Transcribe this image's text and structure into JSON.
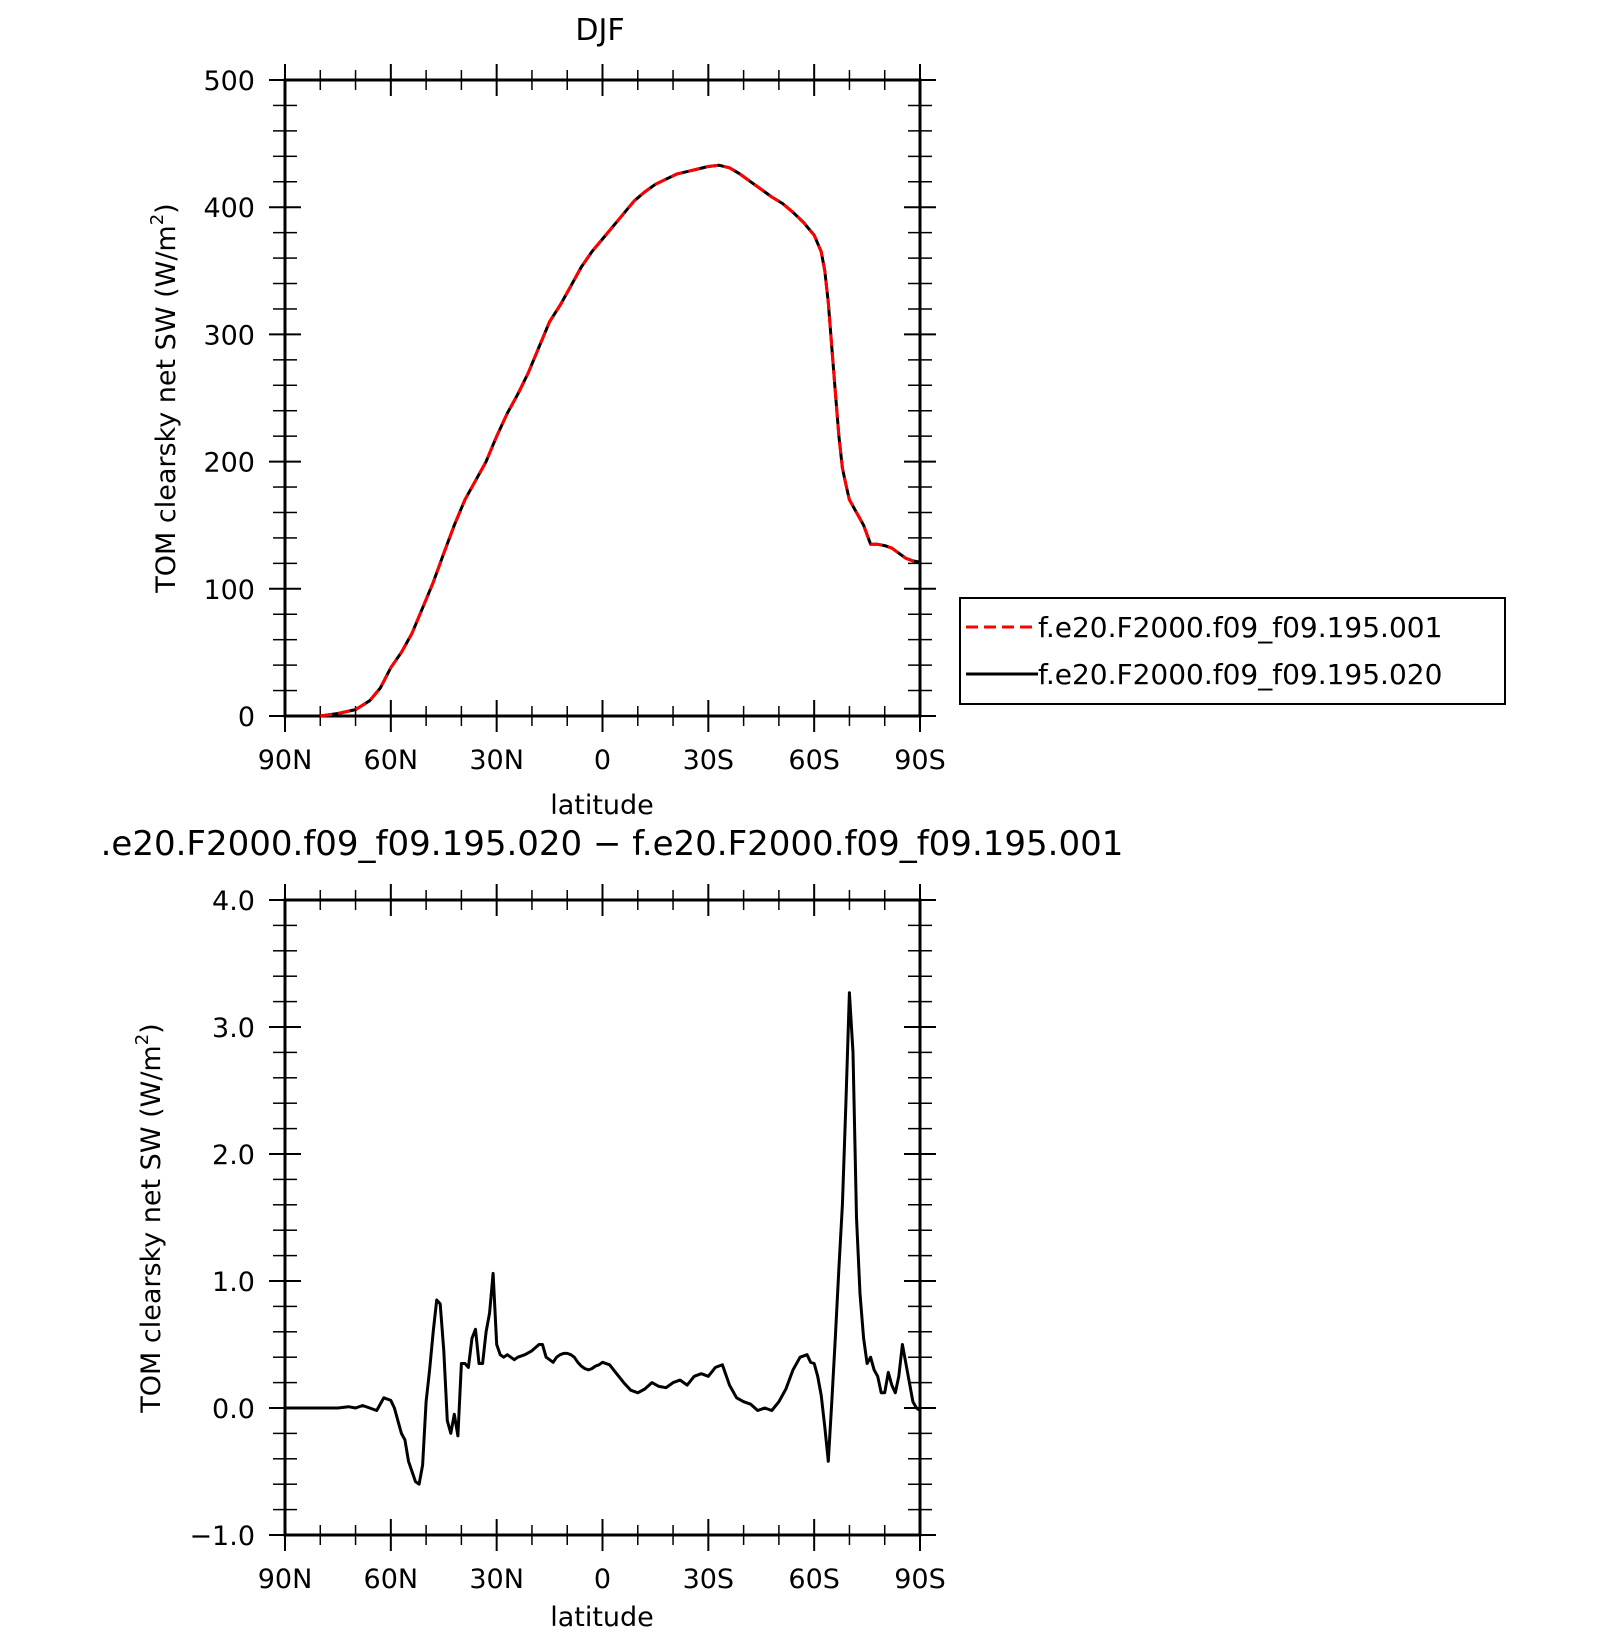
{
  "chart_data": [
    {
      "type": "line",
      "title": "DJF",
      "xlabel": "latitude",
      "ylabel": "TOM clearsky net SW (W/m",
      "ylabel_sup": "2",
      "ylabel_close": ")",
      "xlim": [
        90,
        -90
      ],
      "ylim": [
        0,
        500
      ],
      "xticks": [
        90,
        60,
        30,
        0,
        -30,
        -60,
        -90
      ],
      "xtick_labels": [
        "90N",
        "60N",
        "30N",
        "0",
        "30S",
        "60S",
        "90S"
      ],
      "yticks": [
        0,
        100,
        200,
        300,
        400,
        500
      ],
      "ytick_labels": [
        "0",
        "100",
        "200",
        "300",
        "400",
        "500"
      ],
      "legend_position": "right",
      "series": [
        {
          "name": "f.e20.F2000.f09_f09.195.001",
          "color": "#ff0000",
          "dash": "dashed",
          "x": [
            80,
            75,
            70,
            66,
            63,
            60,
            57,
            54,
            51,
            48,
            45,
            42,
            39,
            36,
            33,
            30,
            27,
            24,
            21,
            18,
            15,
            12,
            9,
            6,
            3,
            0,
            -3,
            -6,
            -9,
            -12,
            -15,
            -18,
            -21,
            -24,
            -27,
            -30,
            -33,
            -36,
            -39,
            -42,
            -45,
            -48,
            -51,
            -54,
            -57,
            -60,
            -62,
            -63,
            -64,
            -65,
            -66,
            -67,
            -68,
            -69,
            -70,
            -71,
            -72,
            -74,
            -76,
            -77,
            -78,
            -80,
            -82,
            -84,
            -86,
            -88,
            -90
          ],
          "y": [
            0,
            2,
            5,
            12,
            22,
            38,
            50,
            65,
            85,
            105,
            128,
            150,
            170,
            185,
            200,
            220,
            238,
            253,
            270,
            290,
            310,
            323,
            338,
            353,
            365,
            375,
            385,
            395,
            405,
            412,
            418,
            422,
            426,
            428,
            430,
            432,
            433,
            431,
            426,
            420,
            414,
            408,
            403,
            396,
            388,
            378,
            365,
            350,
            325,
            290,
            255,
            220,
            195,
            182,
            170,
            165,
            160,
            150,
            135,
            135,
            135,
            134,
            132,
            128,
            124,
            122,
            121
          ]
        },
        {
          "name": "f.e20.F2000.f09_f09.195.020",
          "color": "#000000",
          "dash": "solid",
          "x": [
            80,
            75,
            70,
            66,
            63,
            60,
            57,
            54,
            51,
            48,
            45,
            42,
            39,
            36,
            33,
            30,
            27,
            24,
            21,
            18,
            15,
            12,
            9,
            6,
            3,
            0,
            -3,
            -6,
            -9,
            -12,
            -15,
            -18,
            -21,
            -24,
            -27,
            -30,
            -33,
            -36,
            -39,
            -42,
            -45,
            -48,
            -51,
            -54,
            -57,
            -60,
            -62,
            -63,
            -64,
            -65,
            -66,
            -67,
            -68,
            -69,
            -70,
            -71,
            -72,
            -74,
            -76,
            -77,
            -78,
            -80,
            -82,
            -84,
            -86,
            -88,
            -90
          ],
          "y": [
            0,
            2,
            5,
            12,
            22,
            38,
            50,
            65,
            85,
            105,
            128,
            150,
            170,
            185,
            200,
            220,
            238,
            253,
            270,
            290,
            310,
            323,
            338,
            353,
            365,
            375,
            385,
            395,
            405,
            412,
            418,
            422,
            426,
            428,
            430,
            432,
            433,
            431,
            426,
            420,
            414,
            408,
            403,
            396,
            388,
            378,
            365,
            350,
            325,
            290,
            255,
            220,
            195,
            182,
            170,
            165,
            160,
            150,
            135,
            135,
            135,
            134,
            132,
            128,
            124,
            122,
            121
          ]
        }
      ]
    },
    {
      "type": "line",
      "title": ".e20.F2000.f09_f09.195.020 − f.e20.F2000.f09_f09.195.001",
      "xlabel": "latitude",
      "ylabel": "TOM clearsky net SW (W/m",
      "ylabel_sup": "2",
      "ylabel_close": ")",
      "xlim": [
        90,
        -90
      ],
      "ylim": [
        -1.0,
        4.0
      ],
      "xticks": [
        90,
        60,
        30,
        0,
        -30,
        -60,
        -90
      ],
      "xtick_labels": [
        "90N",
        "60N",
        "30N",
        "0",
        "30S",
        "60S",
        "90S"
      ],
      "yticks": [
        -1.0,
        0.0,
        1.0,
        2.0,
        3.0,
        4.0
      ],
      "ytick_labels": [
        "−1.0",
        "0.0",
        "1.0",
        "2.0",
        "3.0",
        "4.0"
      ],
      "series": [
        {
          "color": "#000000",
          "dash": "solid",
          "x": [
            90,
            85,
            80,
            75,
            72,
            70,
            68,
            66,
            64,
            62,
            60,
            59,
            58,
            57,
            56,
            55,
            54,
            53,
            52,
            51,
            50,
            49,
            48,
            47,
            46,
            45,
            44,
            43,
            42,
            41,
            40,
            39,
            38,
            37,
            36,
            35,
            34,
            33,
            32,
            31,
            30,
            29,
            28,
            27,
            26,
            25,
            24,
            22,
            20,
            18,
            17,
            16,
            15,
            14,
            13,
            12,
            11,
            10,
            9,
            8,
            7,
            6,
            5,
            4,
            3,
            2,
            1,
            0,
            -2,
            -4,
            -6,
            -8,
            -10,
            -12,
            -14,
            -16,
            -18,
            -20,
            -22,
            -24,
            -26,
            -28,
            -30,
            -32,
            -34,
            -36,
            -38,
            -40,
            -42,
            -44,
            -46,
            -48,
            -50,
            -52,
            -54,
            -56,
            -58,
            -59,
            -60,
            -61,
            -62,
            -63,
            -64,
            -65,
            -66,
            -67,
            -68,
            -69,
            -70,
            -71,
            -72,
            -73,
            -74,
            -75,
            -76,
            -77,
            -78,
            -79,
            -80,
            -81,
            -82,
            -83,
            -84,
            -85,
            -86,
            -87,
            -88,
            -89,
            -90
          ],
          "y": [
            0.0,
            0.0,
            0.0,
            0.0,
            0.01,
            0.0,
            0.02,
            0.0,
            -0.02,
            0.08,
            0.06,
            0.0,
            -0.1,
            -0.2,
            -0.25,
            -0.42,
            -0.5,
            -0.58,
            -0.6,
            -0.45,
            0.05,
            0.3,
            0.6,
            0.85,
            0.82,
            0.45,
            -0.1,
            -0.2,
            -0.05,
            -0.22,
            0.35,
            0.35,
            0.32,
            0.55,
            0.62,
            0.35,
            0.35,
            0.6,
            0.75,
            1.06,
            0.5,
            0.42,
            0.4,
            0.42,
            0.4,
            0.38,
            0.4,
            0.42,
            0.45,
            0.5,
            0.5,
            0.4,
            0.38,
            0.36,
            0.4,
            0.42,
            0.43,
            0.43,
            0.42,
            0.4,
            0.36,
            0.33,
            0.31,
            0.3,
            0.31,
            0.33,
            0.34,
            0.36,
            0.34,
            0.27,
            0.2,
            0.14,
            0.12,
            0.15,
            0.2,
            0.17,
            0.16,
            0.2,
            0.22,
            0.18,
            0.25,
            0.27,
            0.25,
            0.32,
            0.34,
            0.18,
            0.08,
            0.05,
            0.03,
            -0.02,
            0.0,
            -0.02,
            0.05,
            0.15,
            0.3,
            0.4,
            0.42,
            0.36,
            0.35,
            0.25,
            0.1,
            -0.15,
            -0.42,
            0.05,
            0.55,
            1.1,
            1.6,
            2.4,
            3.27,
            2.8,
            1.5,
            0.9,
            0.55,
            0.35,
            0.4,
            0.3,
            0.25,
            0.12,
            0.12,
            0.28,
            0.18,
            0.12,
            0.25,
            0.5,
            0.35,
            0.2,
            0.05,
            0.0,
            -0.02
          ]
        }
      ]
    }
  ]
}
